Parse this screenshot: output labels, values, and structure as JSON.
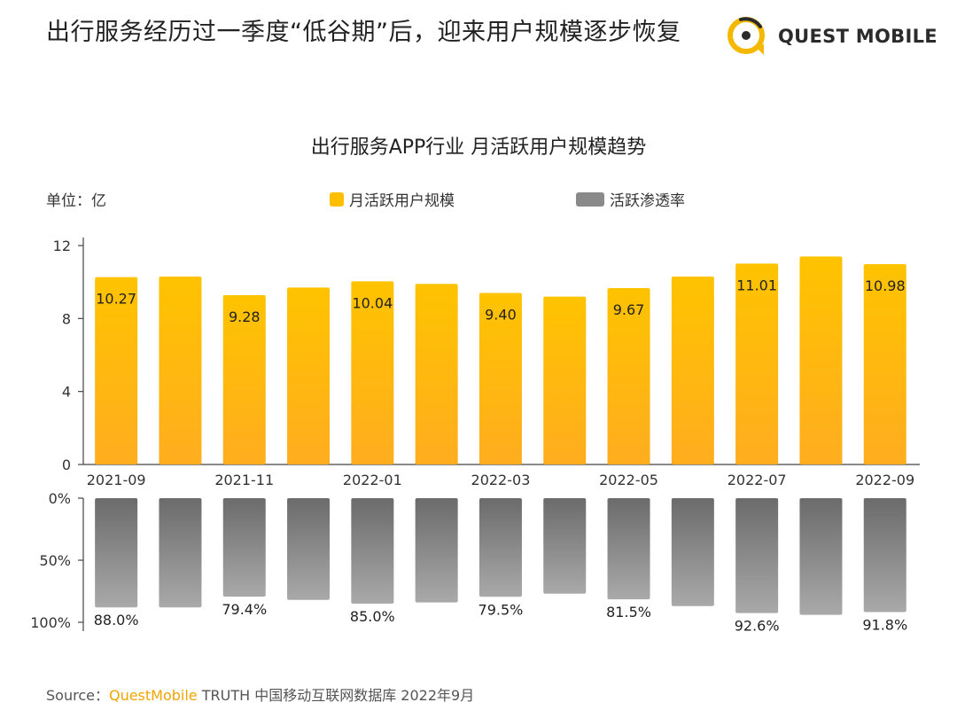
{
  "header": {
    "headline": "出行服务经历过一季度“低谷期”后，迎来用户规模逐步恢复",
    "logo_text": "QUEST MOBILE"
  },
  "legend": {
    "unit": "单位：亿",
    "series1": "月活跃用户规模",
    "series2": "活跃渗透率"
  },
  "source": {
    "prefix": "Source：",
    "brand": "QuestMobile",
    "rest": " TRUTH 中国移动互联网数据库 2022年9月"
  },
  "colors": {
    "bar_top": "#ffc300",
    "bar_bottom": "#ffad1f",
    "gray_top": "#6b6b6b",
    "gray_bottom": "#a9a9a9",
    "brand": "#f0a500"
  },
  "chart_data": [
    {
      "type": "bar",
      "title": "出行服务APP行业 月活跃用户规模趋势",
      "ylabel": "单位：亿",
      "ylim": [
        0,
        12
      ],
      "yticks": [
        "0",
        "4",
        "8",
        "12"
      ],
      "categories": [
        "2021-09",
        "2021-10",
        "2021-11",
        "2021-12",
        "2022-01",
        "2022-02",
        "2022-03",
        "2022-04",
        "2022-05",
        "2022-06",
        "2022-07",
        "2022-08",
        "2022-09"
      ],
      "xtick_labels": [
        "2021-09",
        "",
        "2021-11",
        "",
        "2022-01",
        "",
        "2022-03",
        "",
        "2022-05",
        "",
        "2022-07",
        "",
        "2022-09"
      ],
      "series": [
        {
          "name": "月活跃用户规模",
          "values": [
            10.27,
            10.3,
            9.28,
            9.7,
            10.04,
            9.9,
            9.4,
            9.2,
            9.67,
            10.3,
            11.01,
            11.4,
            10.98
          ],
          "data_labels": [
            "10.27",
            "",
            "9.28",
            "",
            "10.04",
            "",
            "9.40",
            "",
            "9.67",
            "",
            "11.01",
            "",
            "10.98"
          ]
        }
      ]
    },
    {
      "type": "bar",
      "ylim": [
        0,
        100
      ],
      "yticks": [
        "0%",
        "50%",
        "100%"
      ],
      "categories": [
        "2021-09",
        "2021-10",
        "2021-11",
        "2021-12",
        "2022-01",
        "2022-02",
        "2022-03",
        "2022-04",
        "2022-05",
        "2022-06",
        "2022-07",
        "2022-08",
        "2022-09"
      ],
      "series": [
        {
          "name": "活跃渗透率",
          "values": [
            88.0,
            88.0,
            79.4,
            82.0,
            85.0,
            84.0,
            79.5,
            77.0,
            81.5,
            87.0,
            92.6,
            94.0,
            91.8
          ],
          "data_labels": [
            "88.0%",
            "",
            "79.4%",
            "",
            "85.0%",
            "",
            "79.5%",
            "",
            "81.5%",
            "",
            "92.6%",
            "",
            "91.8%"
          ]
        }
      ]
    }
  ]
}
